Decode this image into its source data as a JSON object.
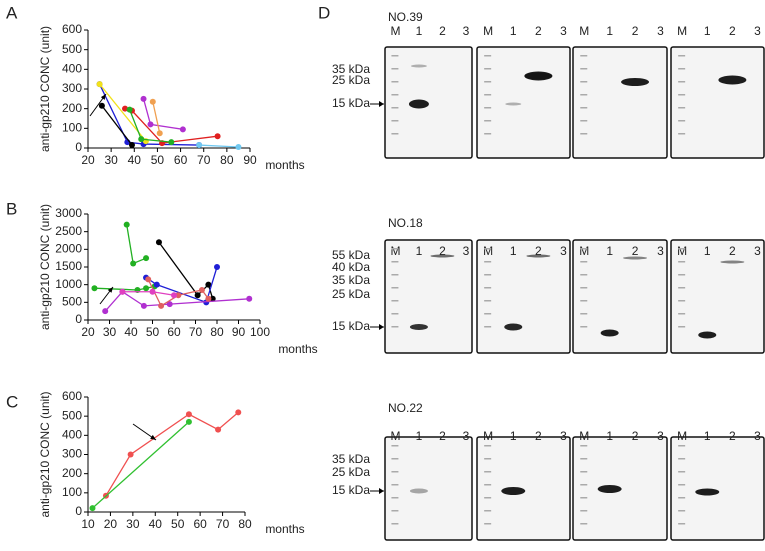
{
  "panels": [
    "A",
    "B",
    "C",
    "D"
  ],
  "chart_data": [
    {
      "type": "line",
      "ylabel": "anti-gp210 CONC (unit)",
      "xlabel": "months",
      "xlim": [
        20,
        90
      ],
      "xticks": [
        20,
        30,
        40,
        50,
        60,
        70,
        80,
        90
      ],
      "ylim": [
        0,
        600
      ],
      "yticks": [
        0,
        100,
        200,
        300,
        400,
        500,
        600
      ],
      "series": [
        {
          "color": "#1f1fd6",
          "x": [
            25,
            37,
            44,
            68
          ],
          "values": [
            325,
            30,
            20,
            15
          ]
        },
        {
          "color": "#000000",
          "x": [
            26,
            39
          ],
          "values": [
            215,
            15
          ]
        },
        {
          "color": "#f2e21a",
          "x": [
            25,
            45
          ],
          "values": [
            325,
            35
          ]
        },
        {
          "color": "#e02020",
          "x": [
            36,
            39,
            52,
            76
          ],
          "values": [
            200,
            190,
            25,
            60
          ]
        },
        {
          "color": "#22b022",
          "x": [
            38,
            43,
            56
          ],
          "values": [
            195,
            45,
            30
          ]
        },
        {
          "color": "#b030d0",
          "x": [
            44,
            47,
            61
          ],
          "values": [
            250,
            120,
            95
          ]
        },
        {
          "color": "#f0a050",
          "x": [
            48,
            51
          ],
          "values": [
            235,
            75
          ]
        },
        {
          "color": "#70c8f0",
          "x": [
            68,
            85
          ],
          "values": [
            15,
            5
          ]
        }
      ]
    },
    {
      "type": "line",
      "ylabel": "anti-gp210 CONC (unit)",
      "xlabel": "months",
      "xlim": [
        20,
        100
      ],
      "xticks": [
        20,
        30,
        40,
        50,
        60,
        70,
        80,
        90,
        100
      ],
      "ylim": [
        0,
        3000
      ],
      "yticks": [
        0,
        500,
        1000,
        1500,
        2000,
        2500,
        3000
      ],
      "series": [
        {
          "color": "#22b022",
          "x": [
            38,
            41,
            47
          ],
          "values": [
            2700,
            1600,
            1750
          ]
        },
        {
          "color": "#22b022",
          "x": [
            23,
            43,
            47,
            51
          ],
          "values": [
            900,
            850,
            900,
            950
          ]
        },
        {
          "color": "#000000",
          "x": [
            53,
            71,
            76,
            78
          ],
          "values": [
            2200,
            700,
            1000,
            600
          ]
        },
        {
          "color": "#1f1fd6",
          "x": [
            47,
            52,
            75,
            80
          ],
          "values": [
            1200,
            1000,
            500,
            1500
          ]
        },
        {
          "color": "#b030d0",
          "x": [
            28,
            36,
            46,
            58,
            95
          ],
          "values": [
            250,
            800,
            400,
            450,
            600
          ]
        },
        {
          "color": "#e06060",
          "x": [
            48,
            54,
            62,
            73,
            76
          ],
          "values": [
            1150,
            400,
            700,
            850,
            600
          ]
        },
        {
          "color": "#e040c0",
          "x": [
            36,
            50,
            60
          ],
          "values": [
            800,
            800,
            700
          ]
        }
      ]
    },
    {
      "type": "line",
      "ylabel": "anti-gp210 CONC (unit)",
      "xlabel": "months",
      "xlim": [
        10,
        80
      ],
      "xticks": [
        10,
        20,
        30,
        40,
        50,
        60,
        70,
        80
      ],
      "ylim": [
        0,
        600
      ],
      "yticks": [
        0,
        100,
        200,
        300,
        400,
        500,
        600
      ],
      "series": [
        {
          "color": "#f05050",
          "x": [
            18,
            29,
            55,
            68,
            77
          ],
          "values": [
            85,
            300,
            510,
            430,
            520
          ]
        },
        {
          "color": "#30c030",
          "x": [
            12,
            55
          ],
          "values": [
            20,
            470
          ]
        }
      ]
    }
  ],
  "blots": [
    {
      "sample": "NO.39",
      "lanes": [
        "M",
        "1",
        "2",
        "3"
      ],
      "markers": [
        "35 kDa",
        "25 kDa",
        "15 kDa"
      ]
    },
    {
      "sample": "NO.18",
      "lanes": [
        "M",
        "1",
        "2",
        "3"
      ],
      "markers": [
        "55 kDa",
        "40 kDa",
        "35 kDa",
        "25 kDa",
        "15 kDa"
      ]
    },
    {
      "sample": "NO.22",
      "lanes": [
        "M",
        "1",
        "2",
        "3"
      ],
      "markers": [
        "35 kDa",
        "25 kDa",
        "15 kDa"
      ]
    }
  ]
}
